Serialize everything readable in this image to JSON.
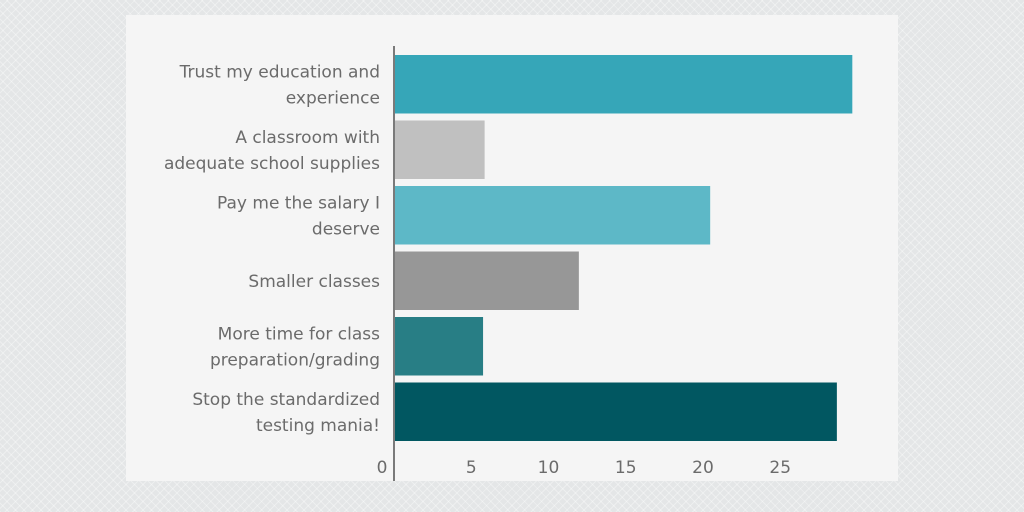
{
  "chart_data": {
    "type": "bar",
    "orientation": "horizontal",
    "categories": [
      [
        "Trust my education and",
        "experience"
      ],
      [
        "A classroom with",
        "adequate school supplies"
      ],
      [
        "Pay me the salary I",
        "deserve"
      ],
      [
        "Smaller classes"
      ],
      [
        "More time for class",
        "preparation/grading"
      ],
      [
        "Stop the standardized",
        "testing mania!"
      ]
    ],
    "values": [
      29.6,
      5.8,
      20.4,
      11.9,
      5.7,
      28.6
    ],
    "colors": [
      "#36a6b8",
      "#c0c0c0",
      "#5db8c7",
      "#979797",
      "#287e85",
      "#015761"
    ],
    "xticks": [
      "0",
      "5",
      "10",
      "15",
      "20",
      "25"
    ],
    "xlim": [
      0,
      30
    ],
    "title": "",
    "xlabel": "",
    "ylabel": "",
    "grid": false,
    "legend": "none"
  }
}
